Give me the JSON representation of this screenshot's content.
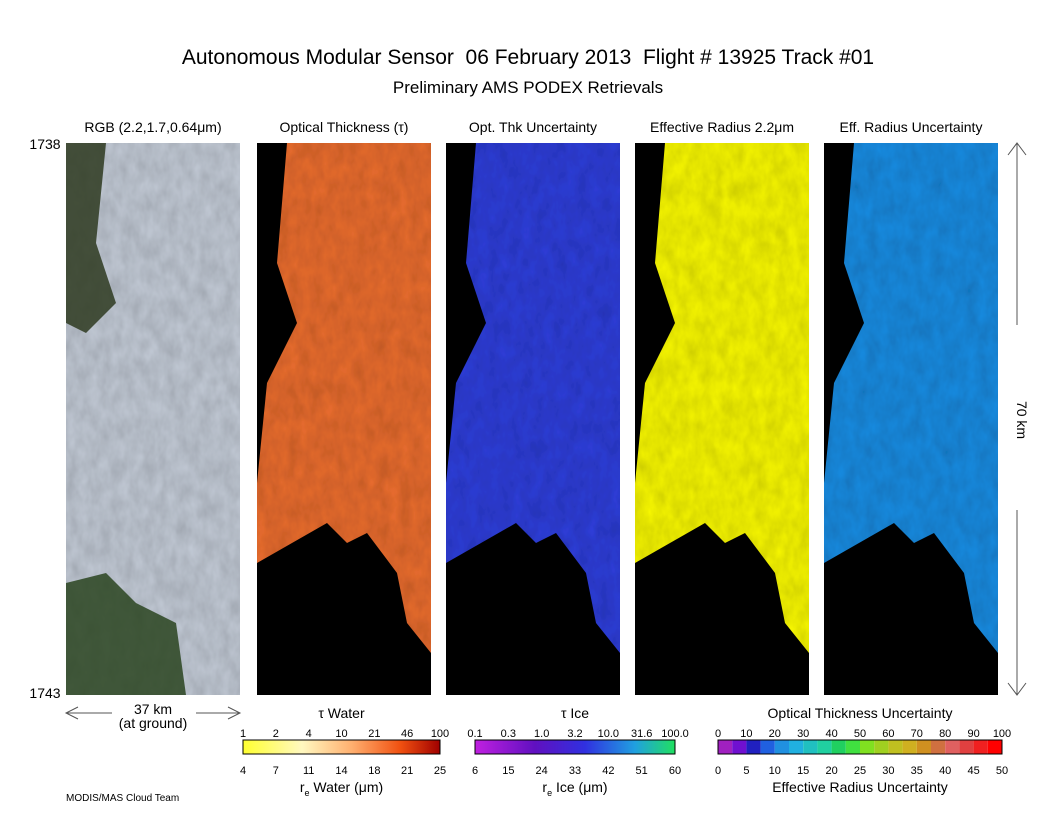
{
  "header": {
    "title": "Autonomous Modular Sensor  06 February 2013  Flight # 13925 Track #01",
    "subtitle": "Preliminary AMS PODEX Retrievals"
  },
  "panels": [
    {
      "title": "RGB (2.2,1.7,0.64μm)"
    },
    {
      "title": "Optical Thickness (τ)"
    },
    {
      "title": "Opt. Thk Uncertainty"
    },
    {
      "title": "Effective Radius 2.2μm"
    },
    {
      "title": "Eff. Radius Uncertainty"
    }
  ],
  "time_labels": {
    "start": "1738",
    "end": "1743"
  },
  "scale": {
    "along_track": "70 km",
    "cross_track": "37 km",
    "cross_track_note": "(at ground)"
  },
  "colorbars": [
    {
      "title": "τ Water",
      "top_ticks": [
        "1",
        "2",
        "4",
        "10",
        "21",
        "46",
        "100"
      ],
      "bottom_ticks": [
        "4",
        "7",
        "11",
        "14",
        "18",
        "21",
        "25"
      ],
      "bottom_label_symbol": "r",
      "bottom_label_subscript": "e",
      "bottom_label_rest": " Water (μm)"
    },
    {
      "title": "τ Ice",
      "top_ticks": [
        "0.1",
        "0.3",
        "1.0",
        "3.2",
        "10.0",
        "31.6",
        "100.0"
      ],
      "bottom_ticks": [
        "6",
        "15",
        "24",
        "33",
        "42",
        "51",
        "60"
      ],
      "bottom_label_symbol": "r",
      "bottom_label_subscript": "e",
      "bottom_label_rest": " Ice (μm)"
    },
    {
      "title": "Optical Thickness Uncertainty",
      "top_ticks": [
        "0",
        "10",
        "20",
        "30",
        "40",
        "50",
        "60",
        "70",
        "80",
        "90",
        "100"
      ],
      "bottom_ticks": [
        "0",
        "5",
        "10",
        "15",
        "20",
        "25",
        "30",
        "35",
        "40",
        "45",
        "50"
      ],
      "bottom_label": "Effective Radius Uncertainty"
    }
  ],
  "credit": "MODIS/MAS Cloud Team"
}
